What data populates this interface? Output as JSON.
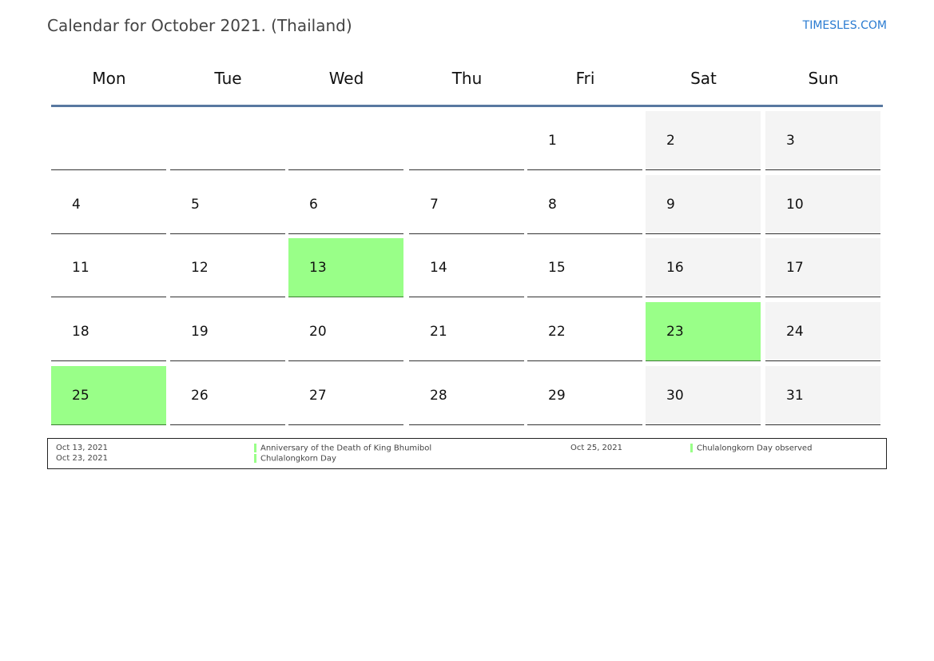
{
  "title": "Calendar for October 2021. (Thailand)",
  "brand": "TIMESLES.COM",
  "weekdays": [
    "Mon",
    "Tue",
    "Wed",
    "Thu",
    "Fri",
    "Sat",
    "Sun"
  ],
  "start_weekday_index": 4,
  "days_in_month": 31,
  "holiday_days": [
    13,
    23,
    25
  ],
  "colors": {
    "holiday": "#99ff88",
    "weekend": "#f4f4f4",
    "header_line": "#5878a0",
    "brand": "#2a7bd1"
  },
  "legend": [
    {
      "date": "Oct 13, 2021",
      "name": "Anniversary of the Death of King Bhumibol"
    },
    {
      "date": "Oct 23, 2021",
      "name": "Chulalongkorn Day"
    },
    {
      "date": "Oct 25, 2021",
      "name": "Chulalongkorn Day observed"
    }
  ]
}
